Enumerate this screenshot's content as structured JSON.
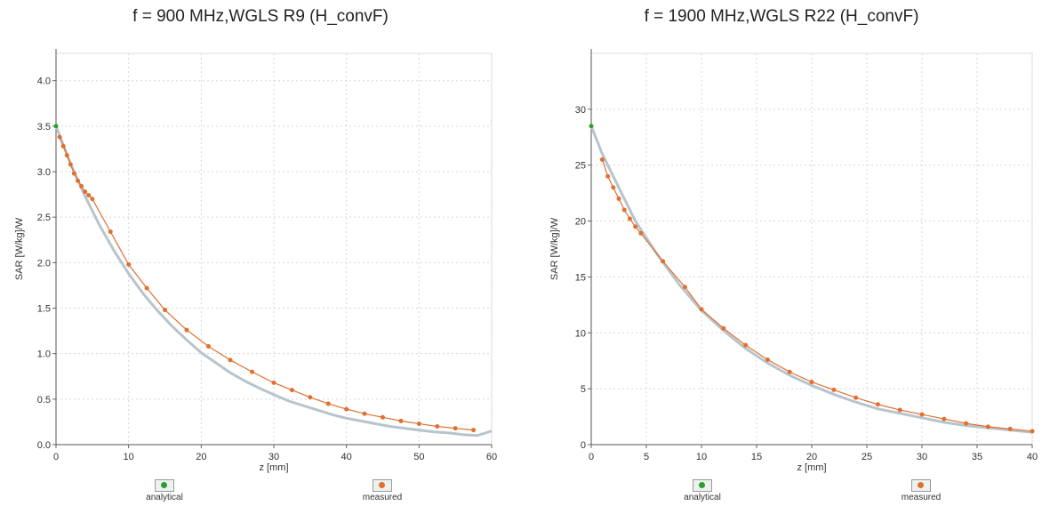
{
  "chart_data": [
    {
      "type": "scatter",
      "title": "f = 900 MHz,WGLS R9 (H_convF)",
      "xlabel": "z [mm]",
      "ylabel": "SAR [W/kg]/W",
      "xlim": [
        0,
        60
      ],
      "ylim": [
        0,
        4.3
      ],
      "xticks": [
        "0",
        "10",
        "20",
        "30",
        "40",
        "50",
        "60"
      ],
      "yticks": [
        "0.0",
        "0.5",
        "1.0",
        "1.5",
        "2.0",
        "2.5",
        "3.0",
        "3.5",
        "4.0"
      ],
      "grid": true,
      "legend_position": "bottom",
      "series": [
        {
          "name": "analytical",
          "color": "#2ca02c",
          "x": [
            0,
            2,
            4,
            6,
            8,
            10,
            12,
            14,
            16,
            18,
            20,
            22,
            24,
            26,
            28,
            30,
            32,
            34,
            36,
            38,
            40,
            42,
            44,
            46,
            48,
            50,
            52,
            54,
            56,
            58,
            60
          ],
          "y": [
            3.5,
            3.09,
            2.73,
            2.41,
            2.13,
            1.88,
            1.66,
            1.47,
            1.3,
            1.15,
            1.01,
            0.9,
            0.79,
            0.7,
            0.62,
            0.55,
            0.48,
            0.43,
            0.38,
            0.33,
            0.29,
            0.26,
            0.23,
            0.2,
            0.18,
            0.16,
            0.14,
            0.13,
            0.11,
            0.1,
            0.15
          ]
        },
        {
          "name": "measured",
          "color": "#e07030",
          "x": [
            0.5,
            1,
            1.5,
            2,
            2.5,
            3,
            3.5,
            4,
            4.5,
            5,
            7.5,
            10,
            12.5,
            15,
            18,
            21,
            24,
            27,
            30,
            32.5,
            35,
            37.5,
            40,
            42.5,
            45,
            47.5,
            50,
            52.5,
            55,
            57.5
          ],
          "y": [
            3.38,
            3.28,
            3.18,
            3.08,
            2.98,
            2.9,
            2.84,
            2.78,
            2.74,
            2.7,
            2.34,
            1.98,
            1.72,
            1.48,
            1.26,
            1.08,
            0.93,
            0.8,
            0.68,
            0.6,
            0.52,
            0.45,
            0.39,
            0.34,
            0.3,
            0.26,
            0.23,
            0.2,
            0.18,
            0.16
          ]
        }
      ]
    },
    {
      "type": "scatter",
      "title": "f = 1900 MHz,WGLS R22 (H_convF)",
      "xlabel": "z [mm]",
      "ylabel": "SAR [W/kg]/W",
      "xlim": [
        0,
        40
      ],
      "ylim": [
        0,
        35
      ],
      "xticks": [
        "0",
        "5",
        "10",
        "15",
        "20",
        "25",
        "30",
        "35",
        "40"
      ],
      "yticks": [
        "0",
        "5",
        "10",
        "15",
        "20",
        "25",
        "30"
      ],
      "grid": true,
      "legend_position": "bottom",
      "series": [
        {
          "name": "analytical",
          "color": "#2ca02c",
          "x": [
            0,
            1,
            2,
            3,
            4,
            5,
            6,
            8,
            10,
            12,
            14,
            16,
            18,
            20,
            22,
            24,
            26,
            28,
            30,
            32,
            34,
            36,
            38,
            40
          ],
          "y": [
            28.5,
            26.0,
            24.0,
            22.0,
            20.0,
            18.5,
            17.0,
            14.3,
            12.0,
            10.2,
            8.6,
            7.3,
            6.2,
            5.3,
            4.5,
            3.8,
            3.2,
            2.8,
            2.4,
            2.0,
            1.7,
            1.5,
            1.3,
            1.1
          ]
        },
        {
          "name": "measured",
          "color": "#e07030",
          "x": [
            1,
            1.5,
            2,
            2.5,
            3,
            3.5,
            4,
            4.5,
            6.5,
            8.5,
            10,
            12,
            14,
            16,
            18,
            20,
            22,
            24,
            26,
            28,
            30,
            32,
            34,
            36,
            38,
            40
          ],
          "y": [
            25.5,
            24.0,
            23.0,
            22.0,
            21.0,
            20.2,
            19.5,
            18.9,
            16.4,
            14.1,
            12.1,
            10.4,
            8.9,
            7.6,
            6.5,
            5.6,
            4.9,
            4.2,
            3.6,
            3.1,
            2.7,
            2.3,
            1.9,
            1.6,
            1.4,
            1.2
          ]
        }
      ]
    }
  ]
}
